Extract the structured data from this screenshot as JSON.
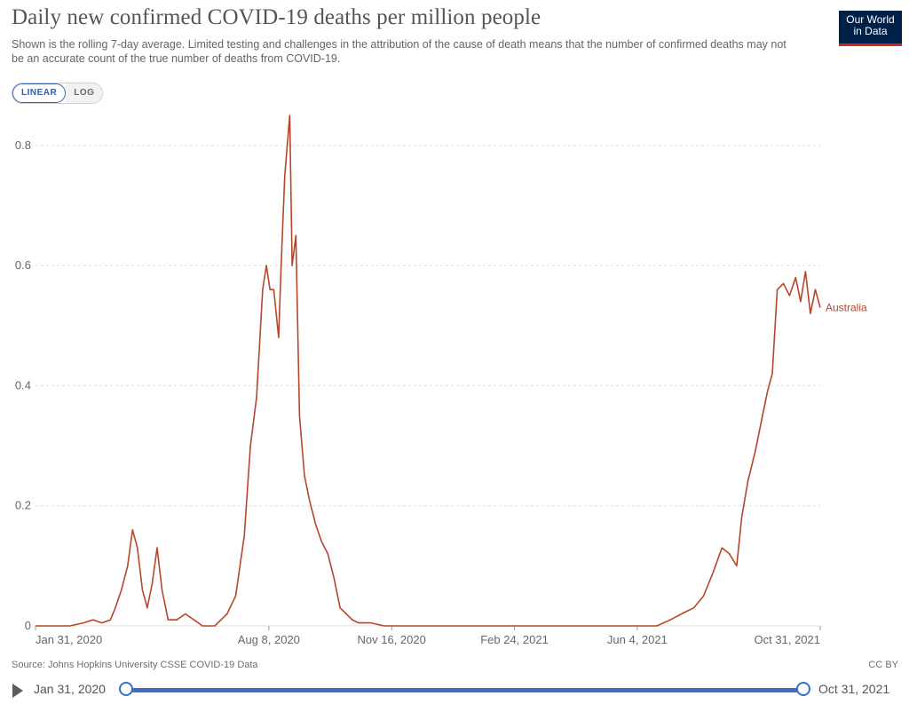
{
  "title": "Daily new confirmed COVID-19 deaths per million people",
  "subtitle": "Shown is the rolling 7-day average. Limited testing and challenges in the attribution of the cause of death means that the number of confirmed deaths may not be an accurate count of the true number of deaths from COVID-19.",
  "logo": {
    "line1": "Our World",
    "line2": "in Data",
    "bg": "#002147",
    "accent": "#ce261e"
  },
  "scale_toggle": {
    "linear": "LINEAR",
    "log": "LOG",
    "selected": "LINEAR"
  },
  "source": "Source: Johns Hopkins University CSSE COVID-19 Data",
  "license": "CC BY",
  "timeline": {
    "start": "Jan 31, 2020",
    "end": "Oct 31, 2021",
    "play_icon": "play-icon"
  },
  "chart_data": {
    "type": "line",
    "title": "Daily new confirmed COVID-19 deaths per million people",
    "y_ticks": [
      "0",
      "0.2",
      "0.4",
      "0.6",
      "0.8"
    ],
    "x_ticks": [
      "Jan 31, 2020",
      "Aug 8, 2020",
      "Nov 16, 2020",
      "Feb 24, 2021",
      "Jun 4, 2021",
      "Oct 31, 2021"
    ],
    "ylim": [
      0,
      0.85
    ],
    "xlim": [
      "2020-01-31",
      "2021-10-31"
    ],
    "grid": "horizontal dashed",
    "series": [
      {
        "name": "Australia",
        "color": "#b5462a",
        "points": [
          [
            "2020-01-31",
            0
          ],
          [
            "2020-02-28",
            0
          ],
          [
            "2020-03-10",
            0.005
          ],
          [
            "2020-03-18",
            0.01
          ],
          [
            "2020-03-25",
            0.005
          ],
          [
            "2020-04-01",
            0.01
          ],
          [
            "2020-04-05",
            0.03
          ],
          [
            "2020-04-10",
            0.06
          ],
          [
            "2020-04-15",
            0.1
          ],
          [
            "2020-04-19",
            0.16
          ],
          [
            "2020-04-23",
            0.13
          ],
          [
            "2020-04-27",
            0.06
          ],
          [
            "2020-05-01",
            0.03
          ],
          [
            "2020-05-05",
            0.07
          ],
          [
            "2020-05-09",
            0.13
          ],
          [
            "2020-05-13",
            0.06
          ],
          [
            "2020-05-18",
            0.01
          ],
          [
            "2020-05-25",
            0.01
          ],
          [
            "2020-06-01",
            0.02
          ],
          [
            "2020-06-08",
            0.01
          ],
          [
            "2020-06-15",
            0
          ],
          [
            "2020-06-25",
            0
          ],
          [
            "2020-06-30",
            0.01
          ],
          [
            "2020-07-05",
            0.02
          ],
          [
            "2020-07-12",
            0.05
          ],
          [
            "2020-07-19",
            0.15
          ],
          [
            "2020-07-24",
            0.3
          ],
          [
            "2020-07-29",
            0.38
          ],
          [
            "2020-08-03",
            0.56
          ],
          [
            "2020-08-06",
            0.6
          ],
          [
            "2020-08-09",
            0.56
          ],
          [
            "2020-08-12",
            0.56
          ],
          [
            "2020-08-16",
            0.48
          ],
          [
            "2020-08-18",
            0.6
          ],
          [
            "2020-08-21",
            0.75
          ],
          [
            "2020-08-25",
            0.85
          ],
          [
            "2020-08-27",
            0.6
          ],
          [
            "2020-08-30",
            0.65
          ],
          [
            "2020-09-02",
            0.35
          ],
          [
            "2020-09-06",
            0.25
          ],
          [
            "2020-09-10",
            0.21
          ],
          [
            "2020-09-15",
            0.17
          ],
          [
            "2020-09-20",
            0.14
          ],
          [
            "2020-09-25",
            0.12
          ],
          [
            "2020-09-30",
            0.08
          ],
          [
            "2020-10-05",
            0.03
          ],
          [
            "2020-10-10",
            0.02
          ],
          [
            "2020-10-15",
            0.01
          ],
          [
            "2020-10-20",
            0.005
          ],
          [
            "2020-10-30",
            0.005
          ],
          [
            "2020-11-10",
            0
          ],
          [
            "2020-12-31",
            0
          ],
          [
            "2021-06-20",
            0
          ],
          [
            "2021-07-01",
            0.01
          ],
          [
            "2021-07-10",
            0.02
          ],
          [
            "2021-07-20",
            0.03
          ],
          [
            "2021-07-28",
            0.05
          ],
          [
            "2021-08-05",
            0.09
          ],
          [
            "2021-08-12",
            0.13
          ],
          [
            "2021-08-18",
            0.12
          ],
          [
            "2021-08-24",
            0.1
          ],
          [
            "2021-08-28",
            0.18
          ],
          [
            "2021-09-02",
            0.24
          ],
          [
            "2021-09-08",
            0.29
          ],
          [
            "2021-09-14",
            0.35
          ],
          [
            "2021-09-18",
            0.39
          ],
          [
            "2021-09-22",
            0.42
          ],
          [
            "2021-09-26",
            0.56
          ],
          [
            "2021-10-01",
            0.57
          ],
          [
            "2021-10-06",
            0.55
          ],
          [
            "2021-10-11",
            0.58
          ],
          [
            "2021-10-15",
            0.54
          ],
          [
            "2021-10-19",
            0.59
          ],
          [
            "2021-10-23",
            0.52
          ],
          [
            "2021-10-27",
            0.56
          ],
          [
            "2021-10-31",
            0.53
          ]
        ]
      }
    ]
  }
}
